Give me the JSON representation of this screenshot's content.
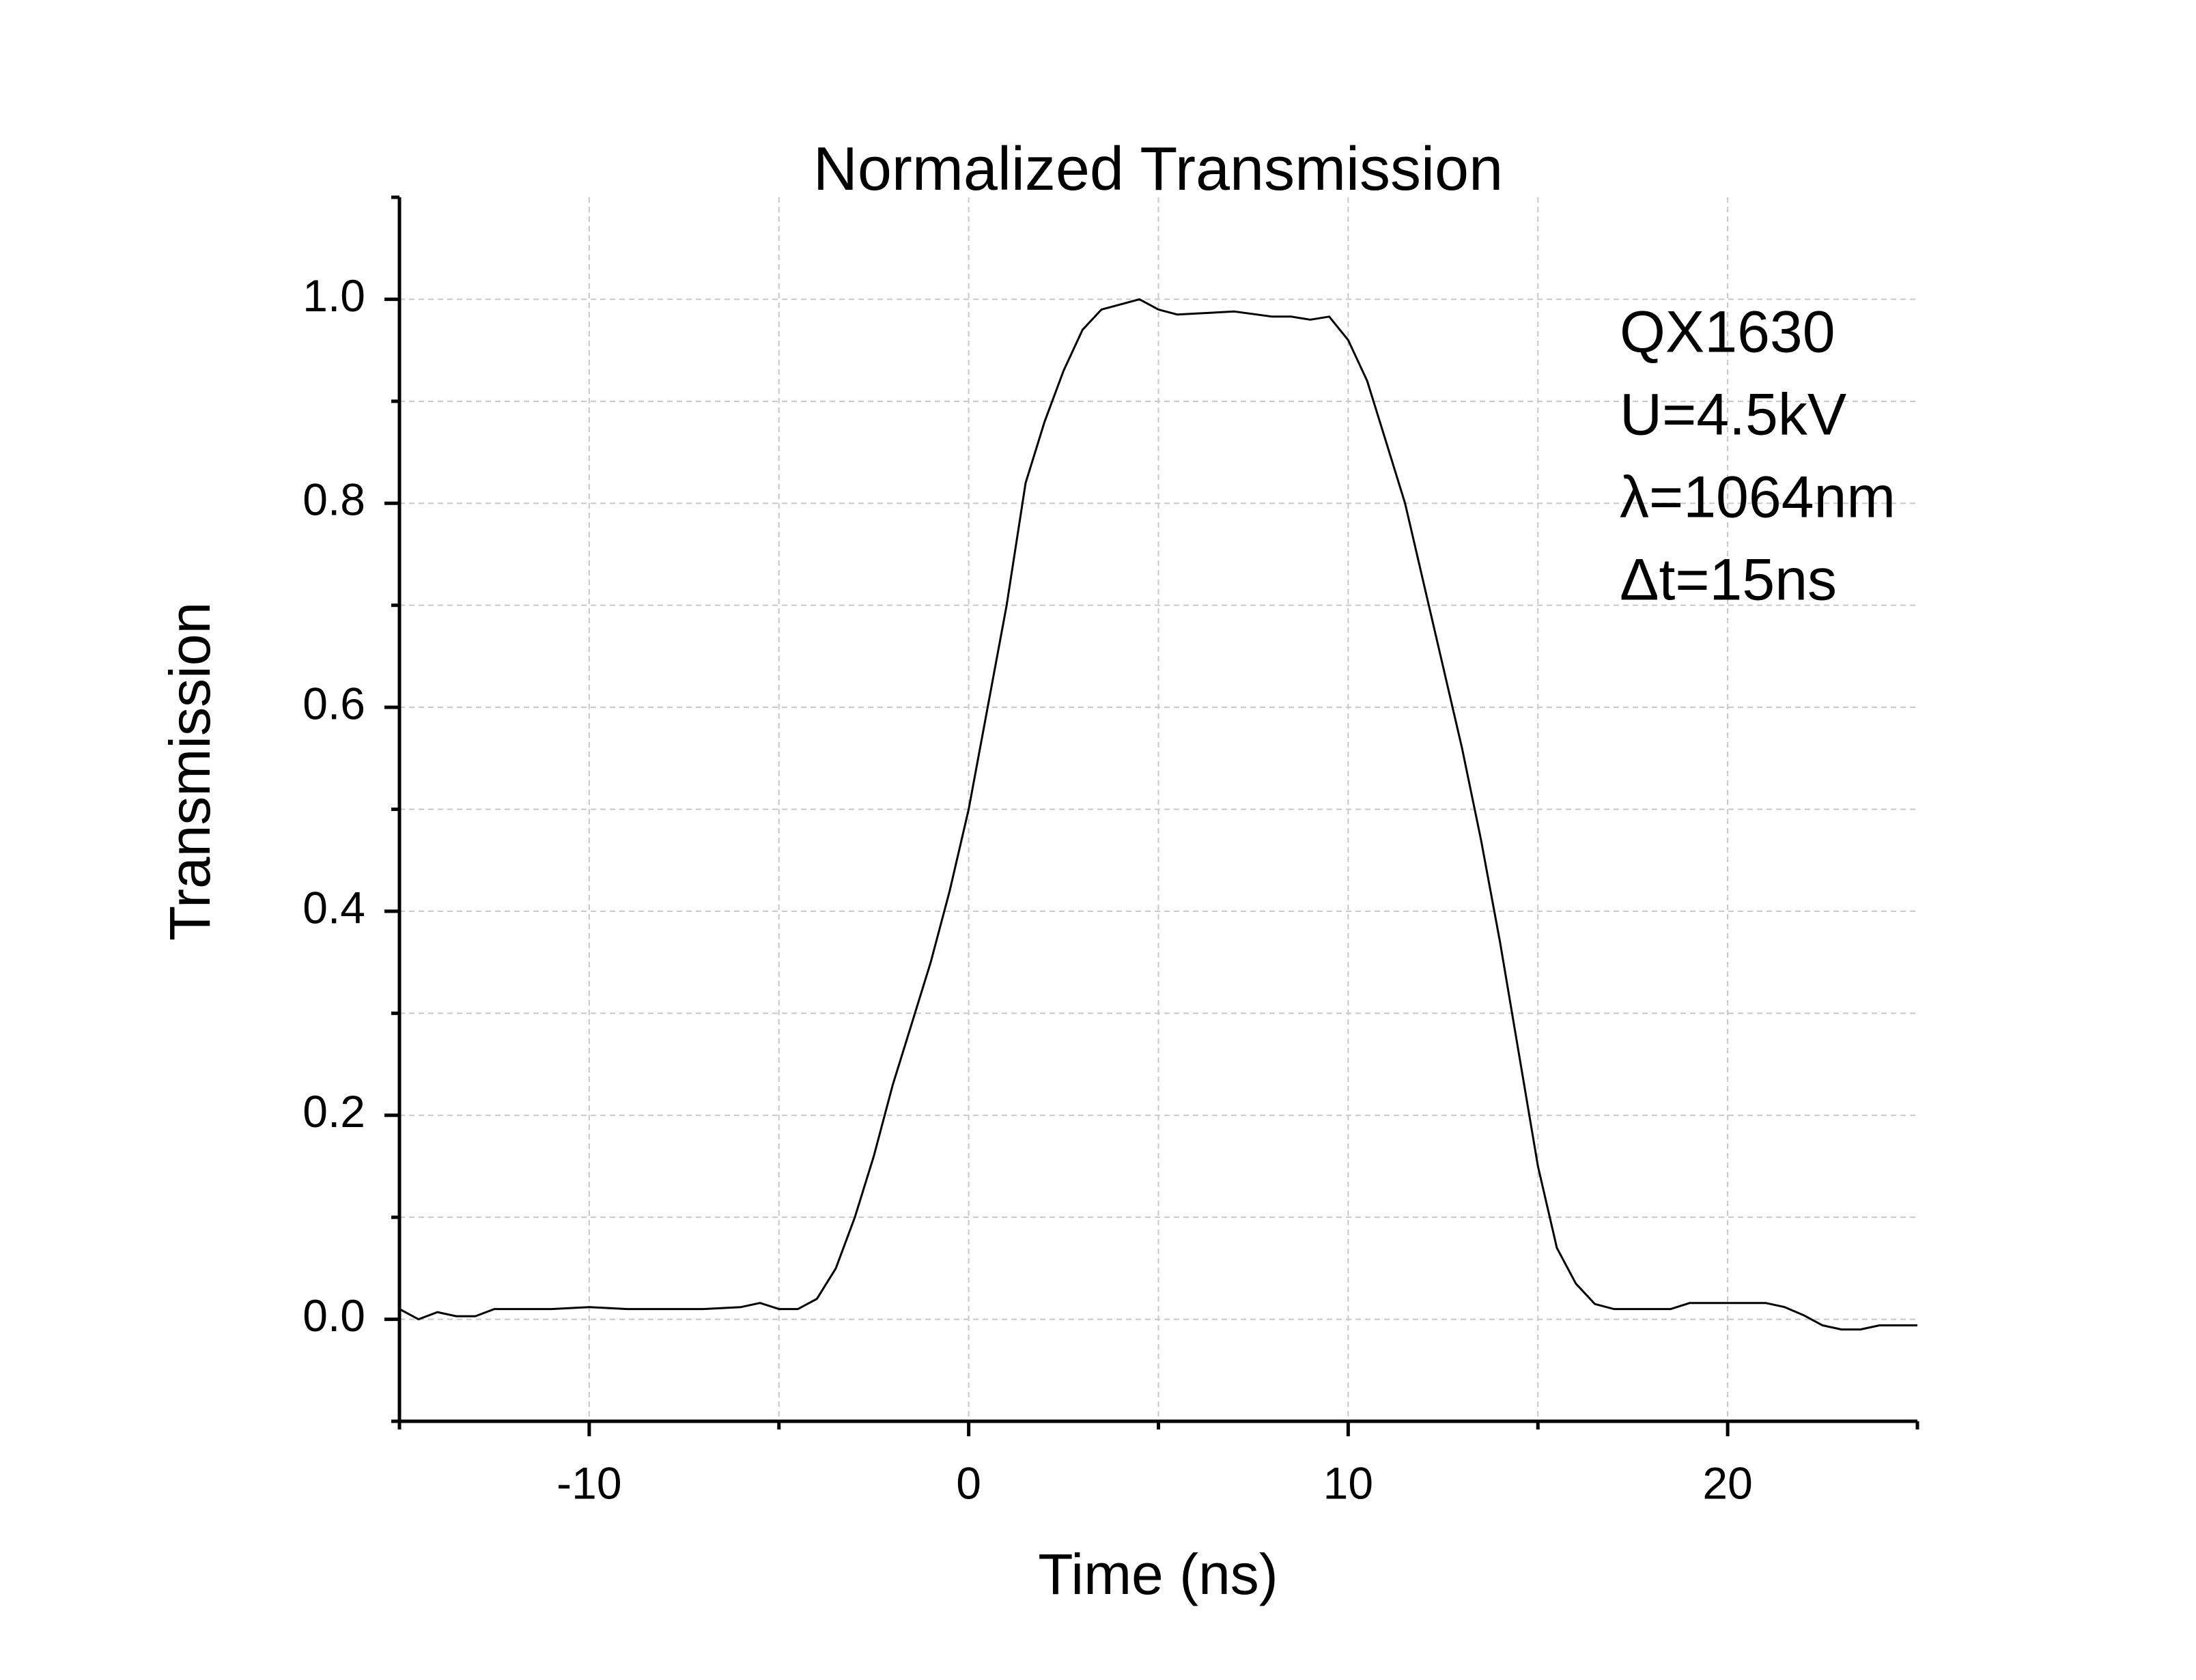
{
  "chart_data": {
    "type": "line",
    "title": "Normalized Transmission",
    "x_label": "Time (ns)",
    "y_label": "Transmission",
    "annotations": [
      "QX1630",
      "U=4.5kV",
      "λ=1064nm",
      "Δt=15ns"
    ],
    "xlim": [
      -15,
      25
    ],
    "ylim": [
      -0.1,
      1.1
    ],
    "xticks": [
      -10,
      0,
      10,
      20
    ],
    "xminorticks": [
      -15,
      -5,
      5,
      15,
      25
    ],
    "yticks": [
      {
        "value": 0,
        "label": "0.0"
      },
      0.2,
      0.4,
      0.6,
      0.8,
      {
        "value": 1,
        "label": "1.0"
      }
    ],
    "yminorticks": [
      -0.1,
      0.1,
      0.3,
      0.5,
      0.7,
      0.9,
      1.1
    ],
    "grid": true,
    "series": [
      {
        "name": "Transmission",
        "color": "#000000",
        "x": [
          -15,
          -14.5,
          -14,
          -13.5,
          -13,
          -12.5,
          -12,
          -11,
          -10,
          -9,
          -8,
          -7,
          -6,
          -5.5,
          -5,
          -4.5,
          -4,
          -3.5,
          -3,
          -2.5,
          -2,
          -1.5,
          -1,
          -0.5,
          0,
          0.5,
          1,
          1.5,
          2,
          2.5,
          3,
          3.5,
          4,
          4.5,
          5,
          5.5,
          6,
          7,
          8,
          8.5,
          9,
          9.5,
          10,
          10.5,
          11,
          11.5,
          12,
          12.5,
          13,
          13.5,
          14,
          14.5,
          15,
          15.5,
          16,
          16.5,
          17,
          18,
          18.5,
          19,
          20,
          21,
          21.5,
          22,
          22.5,
          23,
          23.5,
          24,
          25
        ],
        "values": [
          0.01,
          0.0,
          0.007,
          0.003,
          0.003,
          0.01,
          0.01,
          0.01,
          0.012,
          0.01,
          0.01,
          0.01,
          0.012,
          0.016,
          0.01,
          0.01,
          0.02,
          0.05,
          0.1,
          0.16,
          0.23,
          0.29,
          0.35,
          0.42,
          0.5,
          0.6,
          0.7,
          0.82,
          0.88,
          0.93,
          0.97,
          0.99,
          0.995,
          1.0,
          0.99,
          0.985,
          0.986,
          0.988,
          0.983,
          0.983,
          0.98,
          0.983,
          0.96,
          0.92,
          0.86,
          0.8,
          0.72,
          0.64,
          0.56,
          0.47,
          0.37,
          0.26,
          0.15,
          0.07,
          0.035,
          0.015,
          0.01,
          0.01,
          0.01,
          0.016,
          0.016,
          0.016,
          0.012,
          0.004,
          -0.006,
          -0.01,
          -0.01,
          -0.006,
          -0.006
        ]
      }
    ]
  }
}
